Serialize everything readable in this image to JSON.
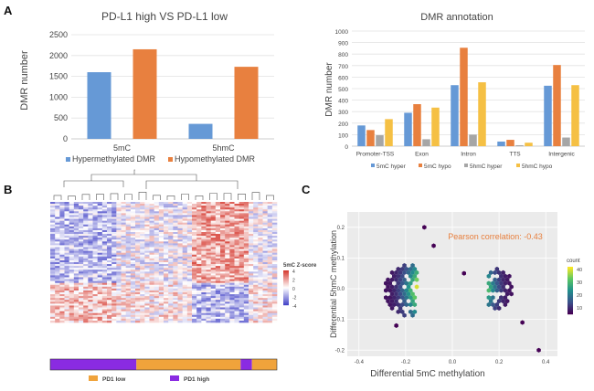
{
  "panels": {
    "a": "A",
    "b": "B",
    "c": "C"
  },
  "chart_data": [
    {
      "type": "bar",
      "title": "PD-L1 high VS PD-L1 low",
      "xlabel": "",
      "ylabel": "DMR number",
      "ylim": [
        0,
        2500
      ],
      "yticks": [
        "0",
        "500",
        "1000",
        "1500",
        "2000",
        "2500"
      ],
      "categories": [
        "5mC",
        "5hmC"
      ],
      "series": [
        {
          "name": "Hypermethylated DMR",
          "color": "#6699d6",
          "values": [
            1600,
            360
          ]
        },
        {
          "name": "Hypomethylated DMR",
          "color": "#e8803f",
          "values": [
            2150,
            1730
          ]
        }
      ],
      "legend": "bottom"
    },
    {
      "type": "bar",
      "title": "DMR annotation",
      "xlabel": "",
      "ylabel": "DMR number",
      "ylim": [
        0,
        1000
      ],
      "yticks": [
        "0",
        "100",
        "200",
        "300",
        "400",
        "500",
        "600",
        "700",
        "800",
        "900",
        "1000"
      ],
      "categories": [
        "Promoter-TSS",
        "Exon",
        "Intron",
        "TTS",
        "Intergenic"
      ],
      "series": [
        {
          "name": "5mC hyper",
          "color": "#6699d6",
          "values": [
            180,
            290,
            530,
            40,
            525
          ]
        },
        {
          "name": "5mC hypo",
          "color": "#e8803f",
          "values": [
            140,
            365,
            855,
            55,
            705
          ]
        },
        {
          "name": "5hmC hyper",
          "color": "#a6a6a6",
          "values": [
            95,
            60,
            100,
            8,
            75
          ]
        },
        {
          "name": "5hmC hypo",
          "color": "#f5c044",
          "values": [
            235,
            335,
            555,
            30,
            530
          ]
        }
      ],
      "legend": "bottom"
    },
    {
      "type": "heatmap",
      "title": "",
      "colorbar_title": "5mC Z-score",
      "colorbar_ticks": [
        "4",
        "2",
        "0",
        "-2",
        "-4"
      ],
      "annotation_legend": [
        {
          "name": "PD1 low",
          "color": "#f0a33b"
        },
        {
          "name": "PD1 high",
          "color": "#8a2be2"
        }
      ]
    },
    {
      "type": "scatter",
      "title": "",
      "xlabel": "Differential 5mC methylation",
      "ylabel": "Differential 5hmC methylation",
      "xlim": [
        -0.45,
        0.45
      ],
      "ylim": [
        -0.22,
        0.25
      ],
      "xticks": [
        "-0.4",
        "-0.2",
        "0.0",
        "0.2",
        "0.4"
      ],
      "yticks": [
        "-0.2",
        "-0.1",
        "0.0",
        "0.1",
        "0.2"
      ],
      "annotation": "Pearson correlation: -0.43",
      "colorbar_title": "count",
      "colorbar_ticks": [
        "40",
        "30",
        "20",
        "10"
      ]
    }
  ]
}
